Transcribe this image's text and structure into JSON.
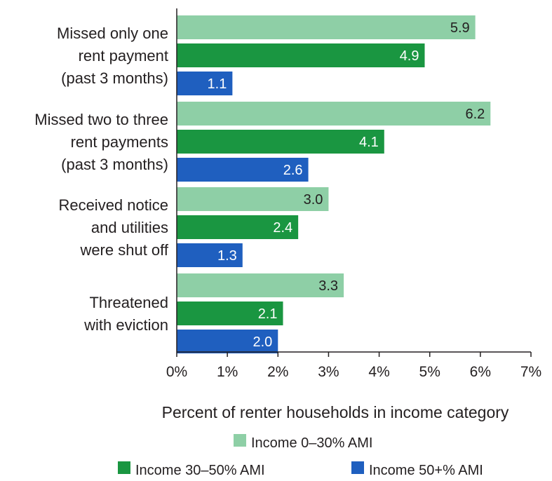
{
  "chart_data": {
    "type": "bar",
    "orientation": "horizontal",
    "categories": [
      [
        "Missed only one",
        "rent payment",
        "(past 3 months)"
      ],
      [
        "Missed two to three",
        "rent payments",
        "(past 3 months)"
      ],
      [
        "Received notice",
        "and utilities",
        "were shut off"
      ],
      [
        "Threatened",
        "with eviction"
      ]
    ],
    "series": [
      {
        "name": "Income 0–30% AMI",
        "color": "#8ecfa6",
        "label_color": "#231f20",
        "values": [
          5.9,
          6.2,
          3.0,
          3.3
        ],
        "labels": [
          "5.9",
          "6.2",
          "3.0",
          "3.3"
        ]
      },
      {
        "name": "Income 30–50% AMI",
        "color": "#1a9641",
        "label_color": "#ffffff",
        "values": [
          4.9,
          4.1,
          2.4,
          2.1
        ],
        "labels": [
          "4.9",
          "4.1",
          "2.4",
          "2.1"
        ]
      },
      {
        "name": "Income 50+% AMI",
        "color": "#1f5fbf",
        "label_color": "#ffffff",
        "values": [
          1.1,
          2.6,
          1.3,
          2.0
        ],
        "labels": [
          "1.1",
          "2.6",
          "1.3",
          "2.0"
        ]
      }
    ],
    "xlim": [
      0,
      7
    ],
    "xticks": [
      "0%",
      "1%",
      "2%",
      "3%",
      "4%",
      "5%",
      "6%",
      "7%"
    ],
    "xlabel": "Percent of renter households in income category",
    "ylabel": "",
    "title": "",
    "grid": false,
    "legend_position": "bottom"
  }
}
